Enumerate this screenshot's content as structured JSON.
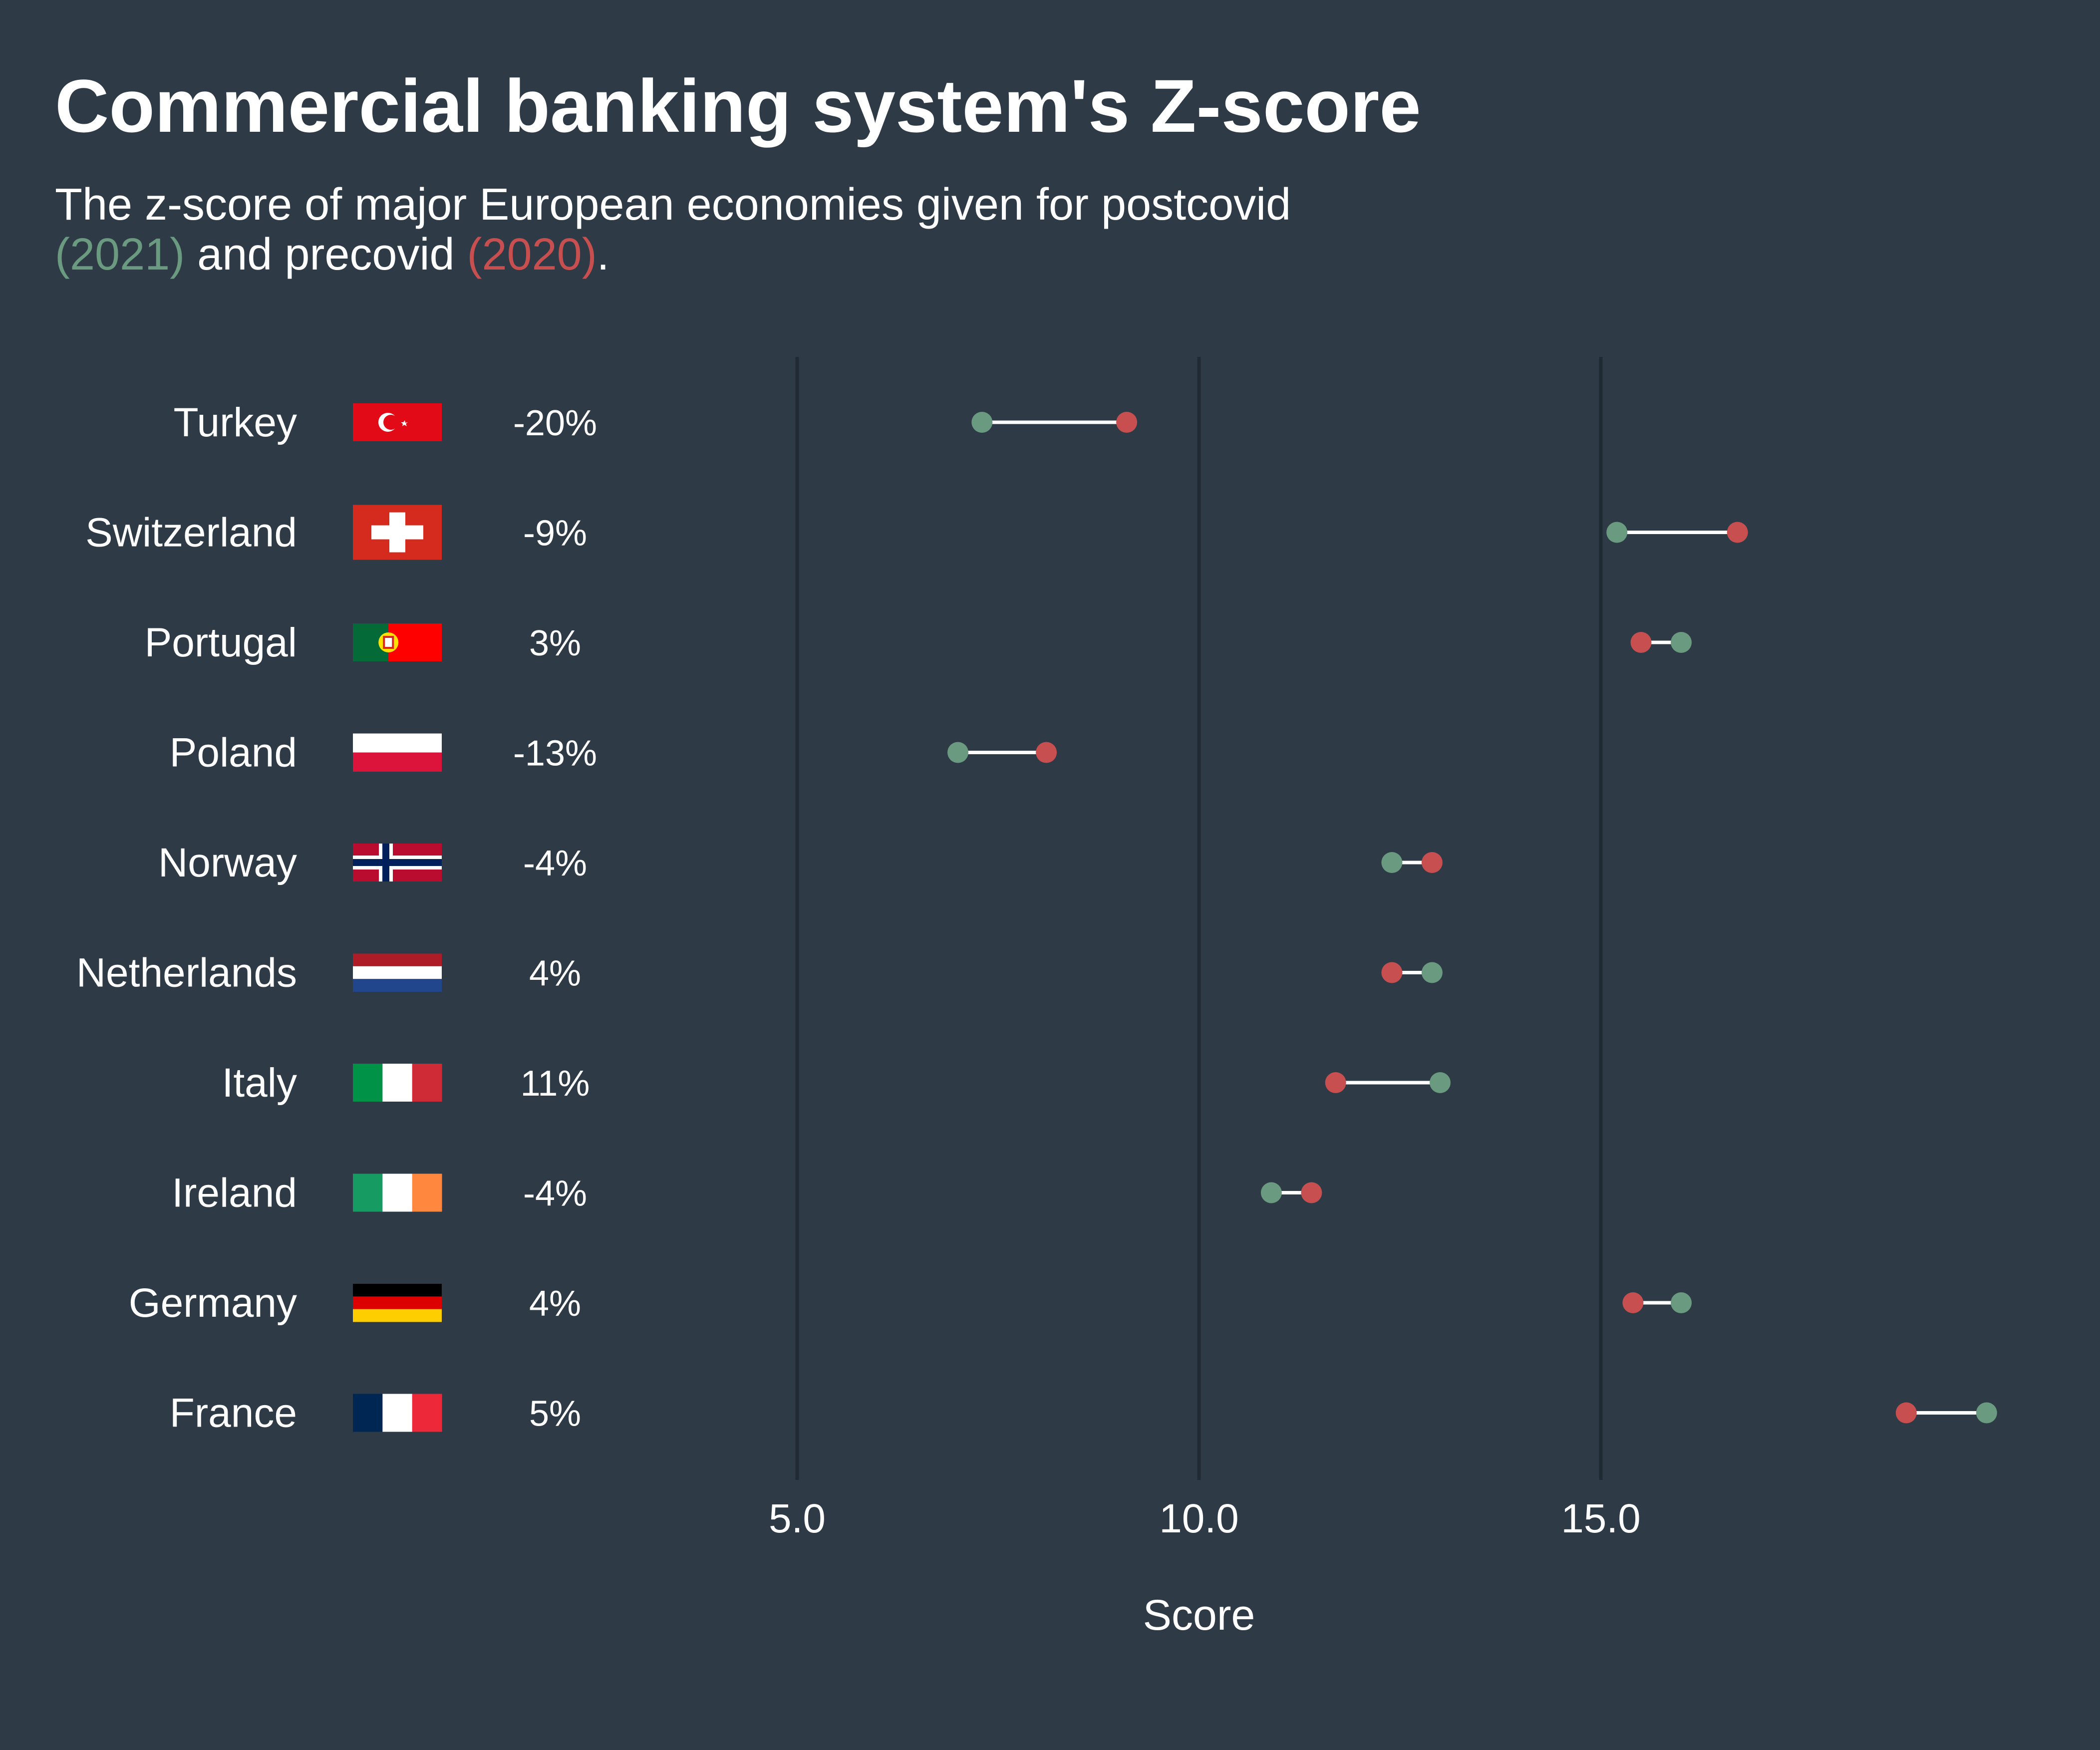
{
  "chart_data": {
    "type": "dumbbell",
    "title": "Commercial banking system's Z-score",
    "subtitle": {
      "prefix": "The z-score of major European economies given for postcovid",
      "post_label": "(2021)",
      "middle": " and precovid ",
      "pre_label": "(2020)",
      "suffix": "."
    },
    "xlabel": "Score",
    "xlim": [
      5.0,
      15.0
    ],
    "xticks": [
      "5.0",
      "10.0",
      "15.0"
    ],
    "grid": "vertical",
    "colors": {
      "postcovid": "#6a9a7f",
      "precovid": "#c84f4f",
      "connector": "#ffffff",
      "grid": "#1f2a33"
    },
    "series": [
      {
        "key": "postcovid"
      },
      {
        "key": "precovid"
      }
    ],
    "rows": [
      {
        "country": "Turkey",
        "flag": "turkey",
        "change": "-20%",
        "postcovid": 7.3,
        "precovid": 9.1
      },
      {
        "country": "Switzerland",
        "flag": "switzerland",
        "change": "-9%",
        "postcovid": 15.2,
        "precovid": 16.7
      },
      {
        "country": "Portugal",
        "flag": "portugal",
        "change": "3%",
        "postcovid": 16.0,
        "precovid": 15.5
      },
      {
        "country": "Poland",
        "flag": "poland",
        "change": "-13%",
        "postcovid": 7.0,
        "precovid": 8.1
      },
      {
        "country": "Norway",
        "flag": "norway",
        "change": "-4%",
        "postcovid": 12.4,
        "precovid": 12.9
      },
      {
        "country": "Netherlands",
        "flag": "netherlands",
        "change": "4%",
        "postcovid": 12.9,
        "precovid": 12.4
      },
      {
        "country": "Italy",
        "flag": "italy",
        "change": "11%",
        "postcovid": 13.0,
        "precovid": 11.7
      },
      {
        "country": "Ireland",
        "flag": "ireland",
        "change": "-4%",
        "postcovid": 10.9,
        "precovid": 11.4
      },
      {
        "country": "Germany",
        "flag": "germany",
        "change": "4%",
        "postcovid": 16.0,
        "precovid": 15.4
      },
      {
        "country": "France",
        "flag": "france",
        "change": "5%",
        "postcovid": 19.8,
        "precovid": 18.8
      }
    ]
  }
}
